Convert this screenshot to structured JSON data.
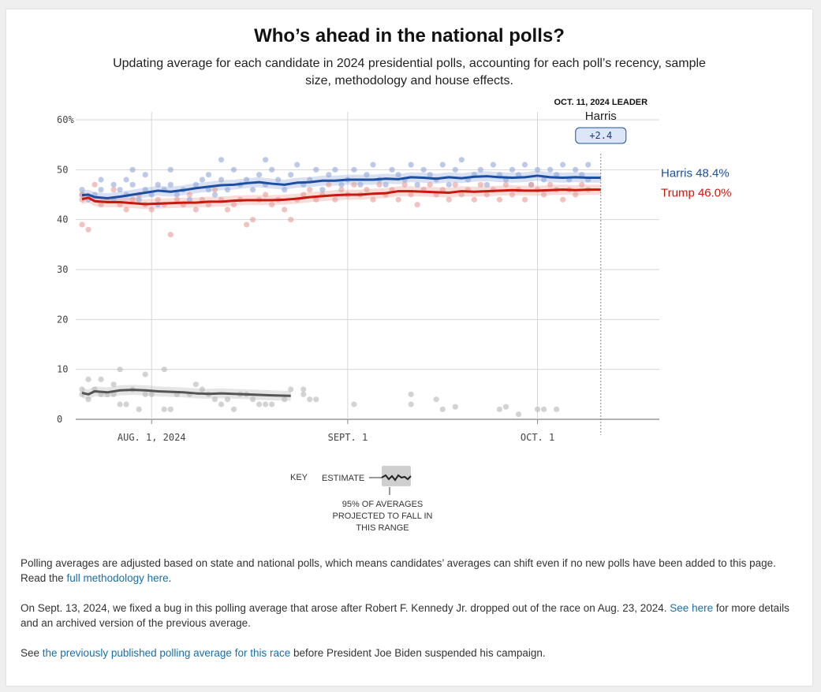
{
  "header": {
    "title": "Who’s ahead in the national polls?",
    "subtitle": "Updating average for each candidate in 2024 presidential polls, accounting for each poll’s recency, sample size, methodology and house effects."
  },
  "chart_data": {
    "type": "line",
    "y_ticks": [
      {
        "value": 60,
        "label": "60%"
      },
      {
        "value": 50,
        "label": "50"
      },
      {
        "value": 40,
        "label": "40"
      },
      {
        "value": 30,
        "label": "30"
      },
      {
        "value": 20,
        "label": "20"
      },
      {
        "value": 10,
        "label": "10"
      },
      {
        "value": 0,
        "label": "0"
      }
    ],
    "ylim": [
      0,
      60
    ],
    "x_domain_days": [
      0,
      92
    ],
    "x_start": "2024-07-21",
    "x_ticks": [
      {
        "day": 11,
        "label": "AUG. 1, 2024"
      },
      {
        "day": 42,
        "label": "SEPT. 1"
      },
      {
        "day": 72,
        "label": "OCT. 1"
      }
    ],
    "leader": {
      "heading": "OCT. 11, 2024 LEADER",
      "name": "Harris",
      "margin": "+2.4",
      "day": 82
    },
    "series": [
      {
        "name": "Harris",
        "label": "Harris 48.4%",
        "color": "#1c4fa0",
        "dot_color": "#8fa6d8",
        "days": [
          0,
          1,
          2,
          4,
          6,
          8,
          10,
          12,
          14,
          16,
          18,
          20,
          22,
          24,
          26,
          28,
          30,
          32,
          34,
          36,
          38,
          40,
          42,
          44,
          46,
          48,
          50,
          52,
          54,
          56,
          58,
          60,
          62,
          64,
          66,
          68,
          70,
          72,
          74,
          76,
          78,
          80,
          82
        ],
        "values": [
          44.9,
          45.0,
          44.5,
          44.3,
          44.6,
          45.0,
          45.4,
          45.8,
          45.6,
          45.9,
          46.3,
          46.6,
          46.9,
          47.0,
          47.3,
          47.5,
          47.2,
          47.0,
          47.4,
          47.5,
          47.8,
          47.8,
          48.0,
          48.0,
          48.0,
          48.2,
          48.1,
          48.5,
          48.4,
          48.2,
          48.5,
          48.3,
          48.6,
          48.7,
          48.5,
          48.4,
          48.5,
          48.8,
          48.5,
          48.4,
          48.5,
          48.4,
          48.4
        ]
      },
      {
        "name": "Trump",
        "label": "Trump 46.0%",
        "color": "#c8190f",
        "dot_color": "#e79a95",
        "days": [
          0,
          1,
          2,
          4,
          6,
          8,
          10,
          12,
          14,
          16,
          18,
          20,
          22,
          24,
          26,
          28,
          30,
          32,
          34,
          36,
          38,
          40,
          42,
          44,
          46,
          48,
          50,
          52,
          54,
          56,
          58,
          60,
          62,
          64,
          66,
          68,
          70,
          72,
          74,
          76,
          78,
          80,
          82
        ],
        "values": [
          44.1,
          44.4,
          43.7,
          43.5,
          43.5,
          43.3,
          43.1,
          43.2,
          43.3,
          43.4,
          43.4,
          43.6,
          43.6,
          43.8,
          43.9,
          43.9,
          43.9,
          44.0,
          44.2,
          44.5,
          44.7,
          44.9,
          45.0,
          45.0,
          45.2,
          45.3,
          45.7,
          45.7,
          45.6,
          45.5,
          45.4,
          45.7,
          45.6,
          45.7,
          45.8,
          45.9,
          45.8,
          45.8,
          45.9,
          46.0,
          45.9,
          46.0,
          46.0
        ]
      },
      {
        "name": "Kennedy",
        "label": "",
        "color": "#555555",
        "dot_color": "#b5b5b5",
        "days": [
          0,
          1,
          2,
          3,
          4,
          6,
          8,
          10,
          12,
          14,
          16,
          18,
          20,
          22,
          24,
          26,
          28,
          30,
          33
        ],
        "values": [
          5.3,
          5.0,
          5.6,
          5.5,
          5.4,
          5.8,
          5.9,
          5.8,
          5.6,
          5.5,
          5.4,
          5.2,
          5.1,
          5.2,
          5.1,
          5.0,
          4.9,
          4.8,
          4.7
        ]
      }
    ],
    "polls": {
      "Harris": [
        [
          0,
          46
        ],
        [
          0,
          45
        ],
        [
          1,
          44
        ],
        [
          2,
          45
        ],
        [
          3,
          48
        ],
        [
          3,
          46
        ],
        [
          5,
          47
        ],
        [
          5,
          44
        ],
        [
          6,
          46
        ],
        [
          7,
          48
        ],
        [
          7,
          45
        ],
        [
          8,
          50
        ],
        [
          8,
          47
        ],
        [
          9,
          44
        ],
        [
          10,
          46
        ],
        [
          10,
          49
        ],
        [
          11,
          45
        ],
        [
          12,
          47
        ],
        [
          12,
          43
        ],
        [
          13,
          46
        ],
        [
          14,
          50
        ],
        [
          14,
          47
        ],
        [
          15,
          45
        ],
        [
          16,
          46
        ],
        [
          17,
          44
        ],
        [
          18,
          47
        ],
        [
          19,
          48
        ],
        [
          20,
          46
        ],
        [
          20,
          49
        ],
        [
          21,
          45
        ],
        [
          22,
          52
        ],
        [
          22,
          48
        ],
        [
          23,
          46
        ],
        [
          24,
          50
        ],
        [
          25,
          47
        ],
        [
          26,
          48
        ],
        [
          27,
          46
        ],
        [
          28,
          49
        ],
        [
          29,
          52
        ],
        [
          29,
          47
        ],
        [
          30,
          50
        ],
        [
          31,
          48
        ],
        [
          32,
          46
        ],
        [
          33,
          49
        ],
        [
          34,
          51
        ],
        [
          35,
          47
        ],
        [
          36,
          48
        ],
        [
          37,
          50
        ],
        [
          38,
          46
        ],
        [
          39,
          49
        ],
        [
          40,
          50
        ],
        [
          41,
          47
        ],
        [
          42,
          48
        ],
        [
          43,
          50
        ],
        [
          44,
          47
        ],
        [
          45,
          49
        ],
        [
          46,
          51
        ],
        [
          47,
          48
        ],
        [
          48,
          47
        ],
        [
          49,
          50
        ],
        [
          50,
          49
        ],
        [
          51,
          48
        ],
        [
          52,
          51
        ],
        [
          53,
          47
        ],
        [
          54,
          50
        ],
        [
          55,
          49
        ],
        [
          56,
          48
        ],
        [
          57,
          51
        ],
        [
          58,
          47
        ],
        [
          59,
          50
        ],
        [
          60,
          52
        ],
        [
          61,
          48
        ],
        [
          62,
          49
        ],
        [
          63,
          50
        ],
        [
          64,
          47
        ],
        [
          65,
          51
        ],
        [
          66,
          49
        ],
        [
          67,
          48
        ],
        [
          68,
          50
        ],
        [
          69,
          49
        ],
        [
          70,
          51
        ],
        [
          71,
          47
        ],
        [
          72,
          50
        ],
        [
          73,
          48
        ],
        [
          74,
          50
        ],
        [
          75,
          49
        ],
        [
          76,
          51
        ],
        [
          77,
          48
        ],
        [
          78,
          50
        ],
        [
          79,
          49
        ],
        [
          80,
          51
        ],
        [
          80,
          48
        ]
      ],
      "Trump": [
        [
          0,
          45
        ],
        [
          0,
          44
        ],
        [
          0,
          39
        ],
        [
          1,
          38
        ],
        [
          2,
          47
        ],
        [
          3,
          43
        ],
        [
          4,
          44
        ],
        [
          5,
          46
        ],
        [
          6,
          43
        ],
        [
          7,
          42
        ],
        [
          8,
          44
        ],
        [
          9,
          45
        ],
        [
          10,
          43
        ],
        [
          11,
          42
        ],
        [
          12,
          44
        ],
        [
          13,
          43
        ],
        [
          14,
          37
        ],
        [
          15,
          44
        ],
        [
          16,
          43
        ],
        [
          17,
          45
        ],
        [
          18,
          42
        ],
        [
          19,
          44
        ],
        [
          20,
          43
        ],
        [
          21,
          46
        ],
        [
          22,
          44
        ],
        [
          23,
          42
        ],
        [
          24,
          43
        ],
        [
          25,
          44
        ],
        [
          26,
          39
        ],
        [
          27,
          40
        ],
        [
          28,
          44
        ],
        [
          29,
          45
        ],
        [
          30,
          43
        ],
        [
          31,
          44
        ],
        [
          32,
          42
        ],
        [
          33,
          40
        ],
        [
          34,
          44
        ],
        [
          35,
          45
        ],
        [
          36,
          46
        ],
        [
          37,
          44
        ],
        [
          38,
          45
        ],
        [
          39,
          47
        ],
        [
          40,
          44
        ],
        [
          41,
          46
        ],
        [
          42,
          45
        ],
        [
          43,
          47
        ],
        [
          44,
          45
        ],
        [
          45,
          46
        ],
        [
          46,
          44
        ],
        [
          47,
          47
        ],
        [
          48,
          45
        ],
        [
          49,
          46
        ],
        [
          50,
          44
        ],
        [
          51,
          47
        ],
        [
          52,
          45
        ],
        [
          53,
          43
        ],
        [
          54,
          46
        ],
        [
          55,
          47
        ],
        [
          56,
          45
        ],
        [
          57,
          46
        ],
        [
          58,
          44
        ],
        [
          59,
          47
        ],
        [
          60,
          45
        ],
        [
          61,
          46
        ],
        [
          62,
          44
        ],
        [
          63,
          47
        ],
        [
          64,
          45
        ],
        [
          65,
          46
        ],
        [
          66,
          44
        ],
        [
          67,
          47
        ],
        [
          68,
          45
        ],
        [
          69,
          46
        ],
        [
          70,
          44
        ],
        [
          71,
          47
        ],
        [
          72,
          46
        ],
        [
          73,
          45
        ],
        [
          74,
          47
        ],
        [
          75,
          46
        ],
        [
          76,
          44
        ],
        [
          77,
          46
        ],
        [
          78,
          45
        ],
        [
          79,
          47
        ],
        [
          80,
          46
        ]
      ],
      "Kennedy": [
        [
          0,
          6
        ],
        [
          0,
          5
        ],
        [
          1,
          8
        ],
        [
          1,
          4
        ],
        [
          2,
          6
        ],
        [
          3,
          5
        ],
        [
          3,
          8
        ],
        [
          4,
          5
        ],
        [
          5,
          7
        ],
        [
          5,
          5
        ],
        [
          6,
          10
        ],
        [
          6,
          3
        ],
        [
          7,
          3
        ],
        [
          8,
          6
        ],
        [
          9,
          2
        ],
        [
          10,
          9
        ],
        [
          10,
          5
        ],
        [
          11,
          5
        ],
        [
          13,
          10
        ],
        [
          13,
          2
        ],
        [
          14,
          2
        ],
        [
          15,
          5
        ],
        [
          17,
          5
        ],
        [
          18,
          7
        ],
        [
          19,
          6
        ],
        [
          20,
          5
        ],
        [
          21,
          4
        ],
        [
          22,
          3
        ],
        [
          23,
          4
        ],
        [
          24,
          2
        ],
        [
          25,
          5
        ],
        [
          26,
          5
        ],
        [
          27,
          4
        ],
        [
          28,
          3
        ],
        [
          29,
          3
        ],
        [
          30,
          3
        ],
        [
          32,
          4
        ],
        [
          33,
          6
        ],
        [
          35,
          6
        ],
        [
          35,
          5
        ],
        [
          36,
          4
        ],
        [
          37,
          4
        ],
        [
          43,
          3
        ],
        [
          52,
          5
        ],
        [
          52,
          3
        ],
        [
          56,
          4
        ],
        [
          57,
          2
        ],
        [
          59,
          2.5
        ],
        [
          66,
          2
        ],
        [
          67,
          2.5
        ],
        [
          69,
          1
        ],
        [
          72,
          2
        ],
        [
          73,
          2
        ],
        [
          75,
          2
        ]
      ]
    },
    "key": {
      "key_label": "KEY",
      "estimate_label": "ESTIMATE",
      "range_label": "95% OF AVERAGES PROJECTED TO FALL IN THIS RANGE",
      "range_lines": [
        "95% OF AVERAGES",
        "PROJECTED TO FALL IN",
        "THIS RANGE"
      ]
    }
  },
  "notes": {
    "p1_text": "Polling averages are adjusted based on state and national polls, which means candidates’ averages can shift even if no new polls have been added to this page. Read the ",
    "p1_link": "full methodology here",
    "p1_end": ".",
    "p2_text": "On Sept. 13, 2024, we fixed a bug in this polling average that arose after Robert F. Kennedy Jr. dropped out of the race on Aug. 23, 2024. ",
    "p2_link": "See here",
    "p2_end": " for more details and an archived version of the previous average.",
    "p3_text": "See ",
    "p3_link": "the previously published polling average for this race",
    "p3_end": " before President Joe Biden suspended his campaign."
  }
}
